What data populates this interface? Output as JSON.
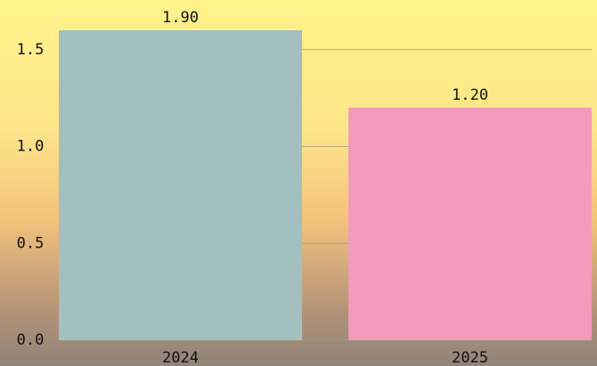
{
  "chart_data": {
    "type": "bar",
    "categories": [
      "2024",
      "2025"
    ],
    "values": [
      1.9,
      1.2
    ],
    "value_labels": [
      "1.90",
      "1.20"
    ],
    "colors": [
      "#a3bfbf",
      "#f49bbb"
    ],
    "ylim": [
      0,
      1.6
    ],
    "yticks": [
      {
        "value": 0,
        "label": "0.0"
      },
      {
        "value": 0.5,
        "label": "0.5"
      },
      {
        "value": 1,
        "label": "1.0"
      },
      {
        "value": 1.5,
        "label": "1.5"
      }
    ],
    "grid": true
  }
}
